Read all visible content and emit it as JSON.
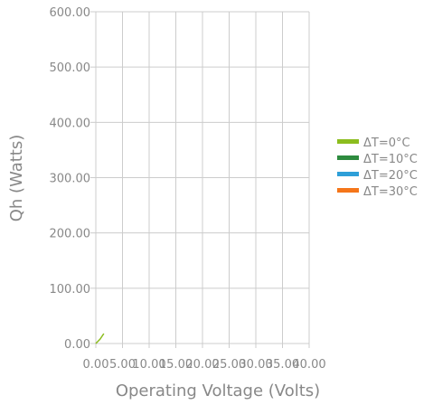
{
  "chart_data": {
    "type": "line",
    "xlabel": "Operating Voltage (Volts)",
    "ylabel": "Qh (Watts)",
    "xlim": [
      0,
      40
    ],
    "ylim": [
      0,
      600
    ],
    "x_ticks": [
      "0.00",
      "5.00",
      "10.00",
      "15.00",
      "20.00",
      "25.00",
      "30.00",
      "35.00",
      "40.00"
    ],
    "y_ticks": [
      "0.00",
      "100.00",
      "200.00",
      "300.00",
      "400.00",
      "500.00",
      "600.00"
    ],
    "grid": true,
    "legend_position": "right",
    "series": [
      {
        "name": "ΔT=0°C",
        "color": "#8cbd1e",
        "points": [
          [
            0,
            0
          ],
          [
            0.8,
            8
          ],
          [
            1.5,
            18
          ]
        ]
      },
      {
        "name": "ΔT=10°C",
        "color": "#2e8b3f",
        "points": []
      },
      {
        "name": "ΔT=20°C",
        "color": "#2e9fd8",
        "points": []
      },
      {
        "name": "ΔT=30°C",
        "color": "#f5761a",
        "points": []
      }
    ]
  }
}
